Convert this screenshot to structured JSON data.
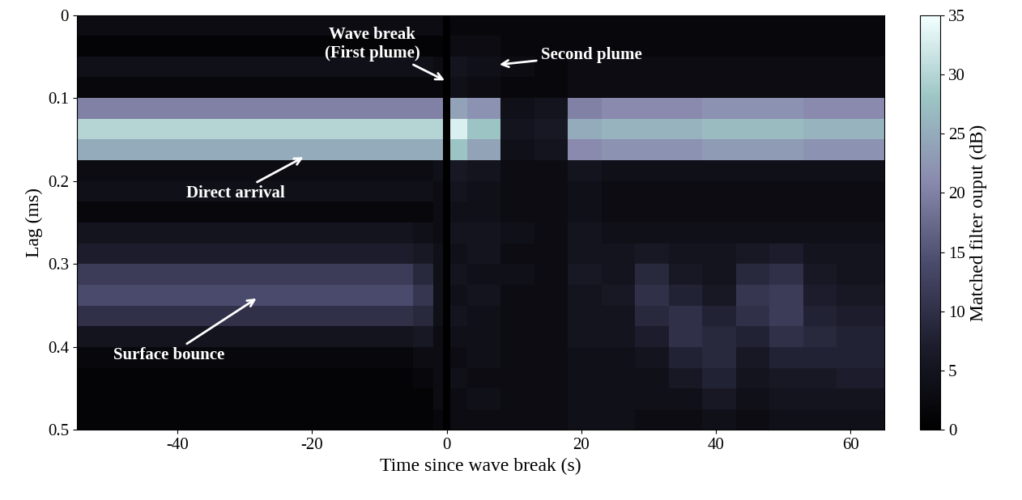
{
  "chart_data": {
    "type": "heatmap",
    "x_label": "Time since wave break (s)",
    "y_label": "Lag (ms)",
    "xlim": [
      -55,
      65
    ],
    "xticks": [
      -40,
      -20,
      0,
      20,
      40,
      60
    ],
    "ylim": [
      0.5,
      0
    ],
    "yticks": [
      0,
      0.1,
      0.2,
      0.3,
      0.4,
      0.5
    ],
    "x_edges": [
      -55,
      -45,
      -35,
      -25,
      -15,
      -5,
      -2,
      -0.5,
      0.5,
      3,
      8,
      13,
      18,
      23,
      28,
      33,
      38,
      43,
      48,
      53,
      58,
      65
    ],
    "y_edges": [
      0,
      0.025,
      0.05,
      0.075,
      0.1,
      0.125,
      0.15,
      0.175,
      0.2,
      0.225,
      0.25,
      0.275,
      0.3,
      0.325,
      0.35,
      0.375,
      0.4,
      0.425,
      0.45,
      0.475,
      0.5
    ],
    "cells_by_time": [
      [
        3,
        1,
        4,
        2,
        20,
        30,
        25,
        3,
        4,
        2,
        5,
        7,
        12,
        14,
        10,
        5,
        2,
        1,
        1,
        1
      ],
      [
        3,
        1,
        4,
        2,
        20,
        30,
        25,
        3,
        4,
        2,
        5,
        7,
        12,
        14,
        10,
        5,
        2,
        1,
        1,
        1
      ],
      [
        3,
        1,
        4,
        2,
        20,
        30,
        25,
        3,
        4,
        2,
        5,
        7,
        12,
        14,
        10,
        5,
        2,
        1,
        1,
        1
      ],
      [
        3,
        1,
        4,
        2,
        20,
        30,
        25,
        3,
        4,
        2,
        5,
        7,
        12,
        14,
        10,
        5,
        2,
        1,
        1,
        1
      ],
      [
        3,
        1,
        4,
        2,
        20,
        30,
        25,
        3,
        4,
        2,
        5,
        7,
        12,
        14,
        10,
        5,
        2,
        1,
        1,
        1
      ],
      [
        3,
        1,
        4,
        2,
        20,
        30,
        25,
        3,
        4,
        2,
        4,
        6,
        9,
        11,
        9,
        6,
        3,
        2,
        1,
        1
      ],
      [
        3,
        1,
        3,
        2,
        20,
        30,
        25,
        4,
        3,
        3,
        3,
        4,
        4,
        4,
        4,
        3,
        3,
        3,
        3,
        2
      ],
      [
        0,
        0,
        0,
        0,
        0,
        0,
        0,
        0,
        0,
        0,
        0,
        0,
        0,
        0,
        0,
        0,
        0,
        0,
        0,
        0
      ],
      [
        2,
        3,
        5,
        4,
        24,
        33,
        28,
        6,
        5,
        4,
        5,
        4,
        5,
        4,
        5,
        4,
        3,
        4,
        3,
        3
      ],
      [
        2,
        3,
        4,
        3,
        22,
        28,
        24,
        5,
        4,
        4,
        5,
        5,
        4,
        5,
        4,
        4,
        4,
        3,
        4,
        3
      ],
      [
        2,
        2,
        3,
        2,
        4,
        5,
        4,
        3,
        3,
        3,
        4,
        3,
        4,
        3,
        3,
        3,
        3,
        3,
        3,
        3
      ],
      [
        2,
        2,
        2,
        2,
        5,
        6,
        5,
        3,
        3,
        3,
        3,
        3,
        3,
        3,
        3,
        3,
        3,
        3,
        3,
        3
      ],
      [
        2,
        2,
        3,
        3,
        20,
        25,
        21,
        5,
        4,
        4,
        5,
        5,
        6,
        5,
        5,
        5,
        4,
        4,
        4,
        4
      ],
      [
        2,
        2,
        3,
        3,
        21,
        26,
        22,
        4,
        3,
        3,
        4,
        5,
        5,
        6,
        5,
        5,
        4,
        4,
        4,
        4
      ],
      [
        2,
        2,
        3,
        3,
        21,
        26,
        22,
        4,
        3,
        3,
        4,
        6,
        9,
        10,
        9,
        7,
        5,
        4,
        4,
        3
      ],
      [
        2,
        2,
        3,
        3,
        21,
        26,
        22,
        4,
        3,
        3,
        4,
        5,
        6,
        8,
        10,
        10,
        8,
        6,
        4,
        3
      ],
      [
        2,
        2,
        3,
        3,
        22,
        27,
        23,
        4,
        3,
        3,
        4,
        5,
        5,
        6,
        8,
        9,
        9,
        8,
        6,
        4
      ],
      [
        2,
        2,
        3,
        3,
        22,
        27,
        23,
        4,
        3,
        3,
        4,
        6,
        9,
        11,
        10,
        8,
        6,
        5,
        4,
        3
      ],
      [
        2,
        2,
        3,
        3,
        22,
        27,
        23,
        4,
        3,
        3,
        4,
        7,
        10,
        12,
        12,
        10,
        8,
        6,
        5,
        4
      ],
      [
        2,
        2,
        3,
        3,
        21,
        26,
        22,
        4,
        3,
        3,
        4,
        5,
        6,
        7,
        8,
        9,
        8,
        6,
        5,
        4
      ],
      [
        2,
        2,
        3,
        3,
        21,
        26,
        22,
        4,
        3,
        3,
        4,
        5,
        5,
        6,
        7,
        8,
        8,
        7,
        5,
        4
      ]
    ],
    "colorbar_label": "Matched filter ouput (dB)",
    "colorbar_lim": [
      0,
      35
    ],
    "colorbar_ticks": [
      0,
      5,
      10,
      15,
      20,
      25,
      30,
      35
    ],
    "annotations": [
      "Wave break\n(First plume)",
      "Second plume",
      "Direct arrival",
      "Surface bounce"
    ]
  }
}
